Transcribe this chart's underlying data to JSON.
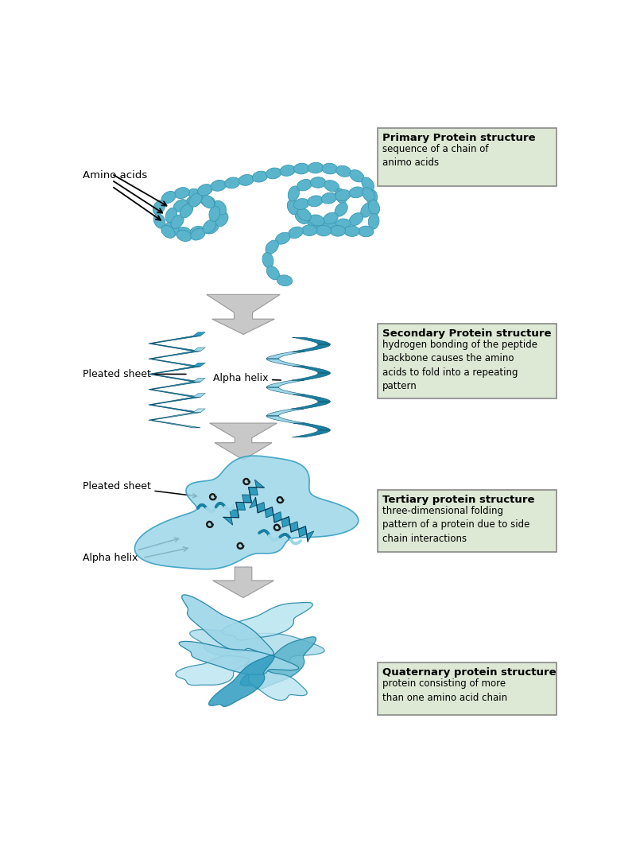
{
  "background_color": "#ffffff",
  "box_bg_color": "#dde8d5",
  "box_edge_color": "#888888",
  "teal": "#5ab4cc",
  "teal_dark": "#1a7fa0",
  "teal_mid": "#2e9bbf",
  "teal_light": "#9dd6e8",
  "teal_pale": "#b8e4f0",
  "gray_arrow": "#b8b8b8",
  "gray_arrow_edge": "#999999",
  "boxes": [
    {
      "title": "Primary Protein structure",
      "body": "sequence of a chain of\nanimo acids",
      "xf": 0.605,
      "yf": 0.87,
      "wf": 0.365,
      "hf": 0.09
    },
    {
      "title": "Secondary Protein structure",
      "body": "hydrogen bonding of the peptide\nbackbone causes the amino\nacids to fold into a repeating\npattern",
      "xf": 0.605,
      "yf": 0.545,
      "wf": 0.365,
      "hf": 0.115
    },
    {
      "title": "Tertiary protein structure",
      "body": "three-dimensional folding\npattern of a protein due to side\nchain interactions",
      "xf": 0.605,
      "yf": 0.31,
      "wf": 0.365,
      "hf": 0.095
    },
    {
      "title": "Quaternary protein structure",
      "body": "protein consisting of more\nthan one amino acid chain",
      "xf": 0.605,
      "yf": 0.06,
      "wf": 0.365,
      "hf": 0.08
    }
  ]
}
